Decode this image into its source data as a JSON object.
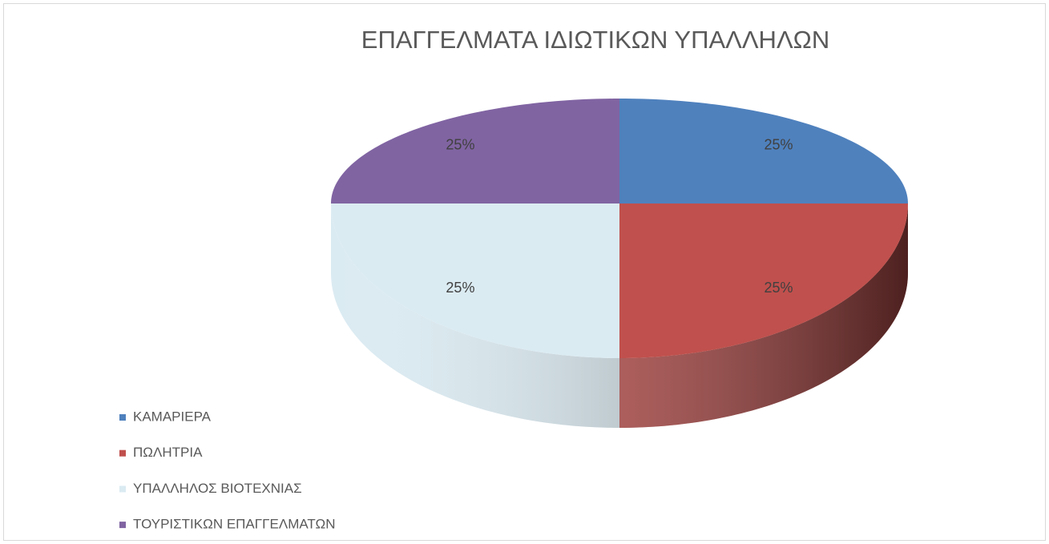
{
  "chart_data": {
    "type": "pie",
    "title": "ΕΠΑΓΓΕΛΜΑΤΑ ΙΔΙΩΤΙΚΩΝ ΥΠΑΛΛΗΛΩΝ",
    "categories": [
      "ΚΑΜΑΡΙΕΡΑ",
      "ΠΩΛΗΤΡΙΑ",
      "ΥΠΑΛΛΗΛΟΣ ΒΙΟΤΕΧΝΙΑΣ",
      "ΤΟΥΡΙΣΤΙΚΩΝ ΕΠΑΓΓΕΛΜΑΤΩΝ"
    ],
    "values": [
      25,
      25,
      25,
      25
    ],
    "value_labels": [
      "25%",
      "25%",
      "25%",
      "25%"
    ],
    "colors": [
      "#4f81bd",
      "#c0504d",
      "#dbebf2",
      "#8064a2"
    ],
    "legend": "left"
  }
}
